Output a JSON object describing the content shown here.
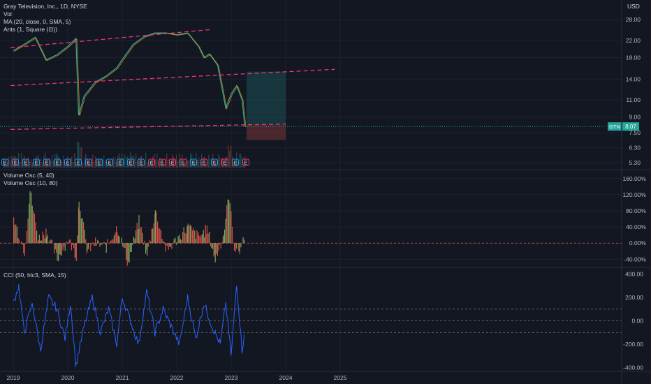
{
  "header": {
    "symbol_line": "Gray Television, Inc., 1D, NYSE",
    "vol_label": "Vol",
    "ma_label": "MA (20, close, 0, SMA, 5)",
    "ants_label": "Ants (1, Square (⊡))",
    "currency": "USD"
  },
  "volume_panel": {
    "labels": [
      "Volume Osc (5, 40)",
      "Volume Osc (10, 80)"
    ]
  },
  "cci_panel": {
    "label": "CCI (50, hlc3, SMA, 15)"
  },
  "price_badge": {
    "ticker": "GTN",
    "value": "8.07",
    "color": "#26a69a"
  },
  "colors": {
    "background": "#131722",
    "up": "#26a69a",
    "down": "#ef5350",
    "trendline": "#f23674",
    "ma": "#ff9800",
    "cci": "#2962ff",
    "volosc_green": "#8fae5d",
    "volosc_red": "#ef5350",
    "event_blue": "#2196f3",
    "event_red": "#f23674"
  },
  "chart_data": [
    {
      "type": "line",
      "title": "Gray Television, Inc., 1D, NYSE",
      "x_ticks": [
        "2019",
        "2020",
        "2021",
        "2022",
        "2023",
        "2024",
        "2025"
      ],
      "y_scale": "log",
      "y_ticks": [
        "28.00",
        "22.00",
        "18.00",
        "14.00",
        "11.00",
        "9.00",
        "7.50",
        "6.30",
        "5.30"
      ],
      "ylim": [
        5.0,
        33.0
      ],
      "x": [
        2019.0,
        2019.2,
        2019.4,
        2019.6,
        2019.8,
        2020.0,
        2020.15,
        2020.2,
        2020.3,
        2020.5,
        2020.7,
        2020.9,
        2021.0,
        2021.2,
        2021.4,
        2021.6,
        2021.8,
        2022.0,
        2022.2,
        2022.4,
        2022.5,
        2022.6,
        2022.75,
        2022.9,
        2023.0,
        2023.1,
        2023.2,
        2023.25
      ],
      "close": [
        19.5,
        21.0,
        22.8,
        17.5,
        18.6,
        20.5,
        22.5,
        9.2,
        11.5,
        13.5,
        14.5,
        16.0,
        17.6,
        21.0,
        23.0,
        24.0,
        24.0,
        23.5,
        24.0,
        20.5,
        18.0,
        18.8,
        16.5,
        10.0,
        11.8,
        13.0,
        11.0,
        8.07
      ],
      "last_price": 8.07,
      "trendlines": [
        {
          "from": [
            2018.95,
            20.2
          ],
          "to": [
            2022.65,
            25.0
          ]
        },
        {
          "from": [
            2018.95,
            13.0
          ],
          "to": [
            2024.9,
            15.7
          ]
        },
        {
          "from": [
            2018.95,
            7.8
          ],
          "to": [
            2024.0,
            8.3
          ]
        }
      ],
      "position": {
        "entry": 8.2,
        "target": 15.3,
        "stop": 6.9,
        "x_from": 2023.28,
        "x_to": 2024.0
      },
      "event_markers": [
        "E"
      ]
    },
    {
      "type": "area",
      "title": "Volume Osc (5, 40)",
      "y_ticks": [
        "160.00%",
        "120.00%",
        "80.00%",
        "40.00%",
        "0.00%",
        "-40.00%"
      ],
      "ylim": [
        -55,
        170
      ],
      "x": [
        2019.0,
        2019.1,
        2019.2,
        2019.3,
        2019.45,
        2019.6,
        2019.8,
        2020.0,
        2020.15,
        2020.2,
        2020.35,
        2020.5,
        2020.7,
        2020.9,
        2021.1,
        2021.3,
        2021.45,
        2021.6,
        2021.8,
        2022.0,
        2022.2,
        2022.4,
        2022.55,
        2022.7,
        2022.85,
        2022.95,
        2023.05,
        2023.15,
        2023.25
      ],
      "values": [
        60,
        20,
        -20,
        130,
        10,
        30,
        -40,
        10,
        -30,
        110,
        -20,
        0,
        -10,
        40,
        -50,
        55,
        -30,
        80,
        -20,
        10,
        40,
        15,
        35,
        -40,
        20,
        120,
        -10,
        -20,
        30
      ]
    },
    {
      "type": "line",
      "title": "CCI (50, hlc3, SMA, 15)",
      "y_ticks": [
        "400.00",
        "200.00",
        "0.00",
        "-200.00",
        "-400.00"
      ],
      "ylim": [
        -420,
        420
      ],
      "x": [
        2019.0,
        2019.1,
        2019.2,
        2019.35,
        2019.5,
        2019.65,
        2019.8,
        2019.95,
        2020.05,
        2020.15,
        2020.3,
        2020.45,
        2020.6,
        2020.75,
        2020.9,
        2021.0,
        2021.15,
        2021.3,
        2021.45,
        2021.6,
        2021.75,
        2021.9,
        2022.05,
        2022.2,
        2022.35,
        2022.5,
        2022.65,
        2022.8,
        2022.9,
        2023.0,
        2023.1,
        2023.2,
        2023.25
      ],
      "values": [
        150,
        300,
        -100,
        150,
        -250,
        200,
        100,
        -150,
        150,
        -380,
        -50,
        200,
        -100,
        100,
        -200,
        200,
        0,
        -200,
        250,
        -100,
        100,
        -50,
        -200,
        200,
        -150,
        150,
        -50,
        -200,
        150,
        -300,
        320,
        -250,
        -100
      ],
      "hlines": [
        100,
        0,
        -100
      ]
    }
  ]
}
